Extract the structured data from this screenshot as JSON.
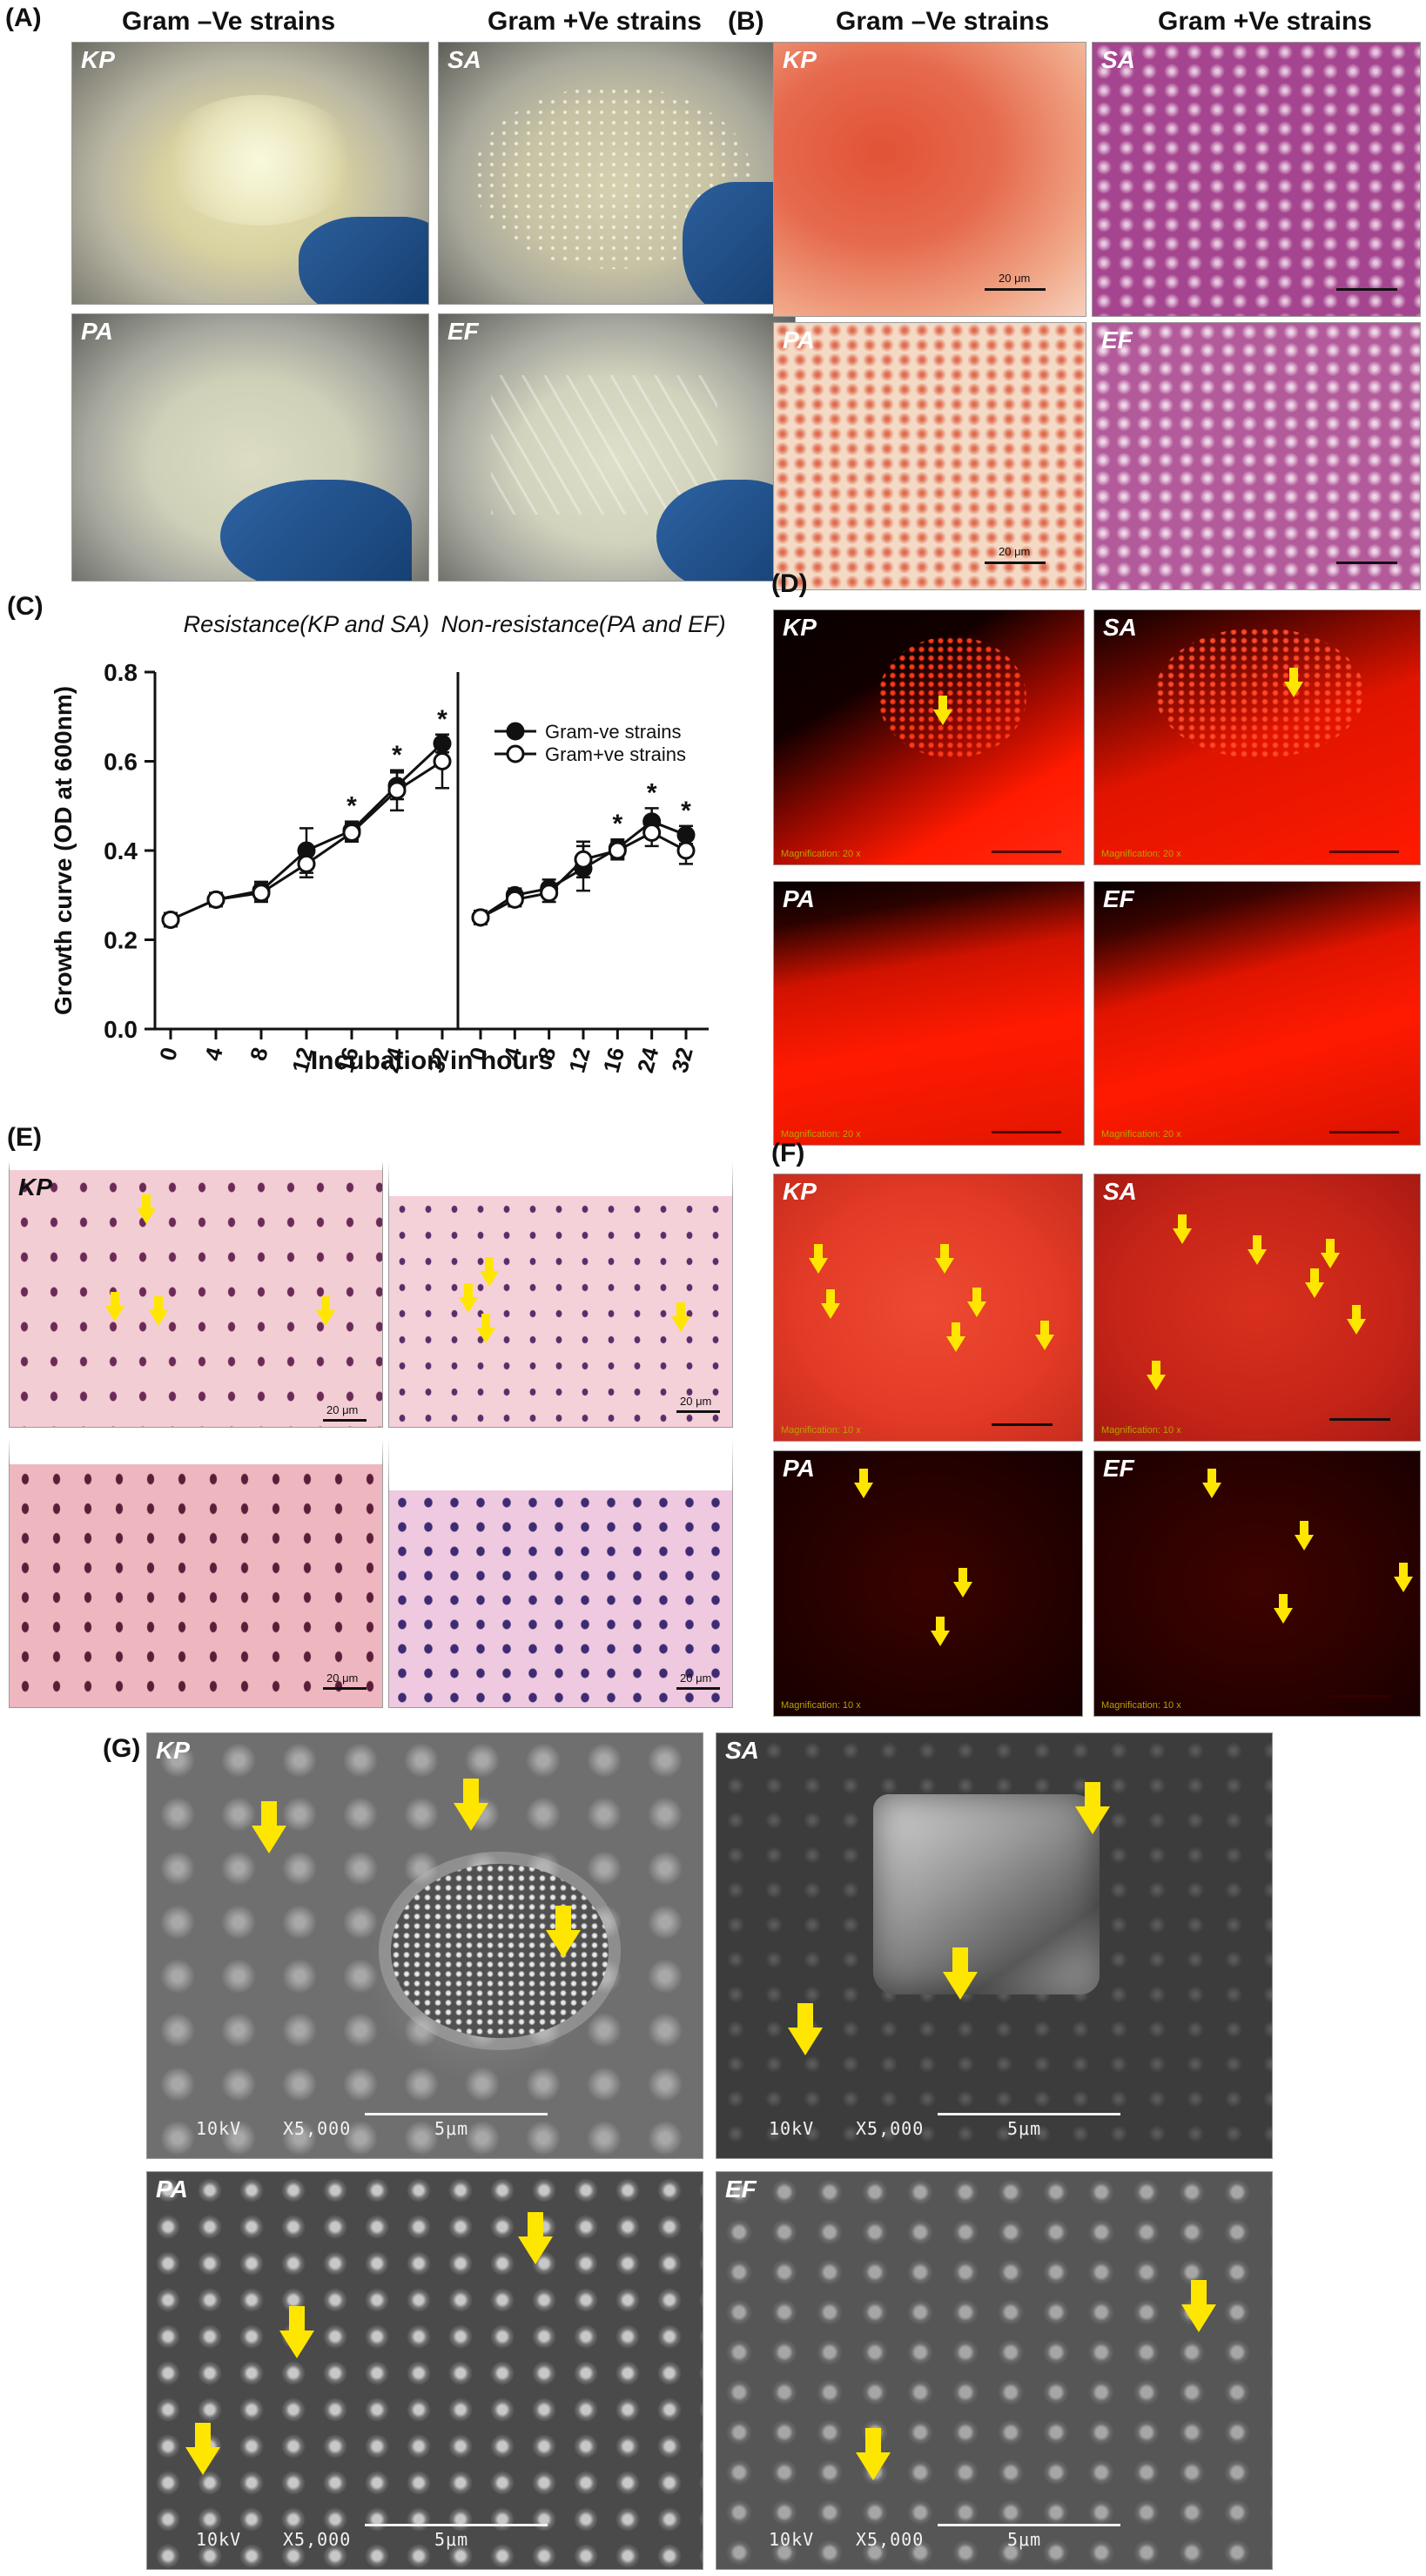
{
  "panels": {
    "A": {
      "label": "(A)",
      "header_left": "Gram –Ve strains",
      "header_right": "Gram +Ve strains",
      "tiles": [
        "KP",
        "SA",
        "PA",
        "EF"
      ]
    },
    "B": {
      "label": "(B)",
      "header_left": "Gram –Ve strains",
      "header_right": "Gram +Ve strains",
      "tiles": [
        "KP",
        "SA",
        "PA",
        "EF"
      ],
      "scale_text": "20 μm"
    },
    "C": {
      "label": "(C)",
      "title_left": "Resistance(KP and SA)",
      "title_right": "Non-resistance(PA and EF)",
      "ylabel": "Growth curve (OD at 600nm)",
      "xlabel": "Incubation in hours"
    },
    "D": {
      "label": "(D)",
      "tiles": [
        "KP",
        "SA",
        "PA",
        "EF"
      ],
      "mag_text": "Magnification: 20 x"
    },
    "E": {
      "label": "(E)",
      "tiles": [
        "KP",
        "SA",
        "PA",
        "EF"
      ],
      "scale_text": "20 μm"
    },
    "F": {
      "label": "(F)",
      "tiles": [
        "KP",
        "SA",
        "PA",
        "EF"
      ],
      "mag_text": "Magnification: 10 x"
    },
    "G": {
      "label": "(G)",
      "tiles": [
        "KP",
        "SA",
        "PA",
        "EF"
      ],
      "sem_kv": "10kV",
      "sem_mag": "X5,000",
      "sem_scale": "5μm"
    }
  },
  "chart_data": {
    "type": "line",
    "ylabel": "Growth curve (OD at 600nm)",
    "xlabel": "Incubation in hours",
    "ylim": [
      0.0,
      0.8
    ],
    "yticks": [
      "0.0",
      "0.2",
      "0.4",
      "0.6",
      "0.8"
    ],
    "categories": [
      "0",
      "4",
      "8",
      "12",
      "16",
      "24",
      "32"
    ],
    "legend": [
      "Gram-ve strains",
      "Gram+ve strains"
    ],
    "legend_position": "top-right of right subplot",
    "significance_marker": "*",
    "subplots": [
      {
        "title": "Resistance(KP and SA)",
        "series": [
          {
            "name": "Gram-ve strains",
            "marker": "filled",
            "values": [
              0.245,
              0.29,
              0.31,
              0.4,
              0.445,
              0.545,
              0.64
            ],
            "errors": [
              0.015,
              0.015,
              0.02,
              0.05,
              0.02,
              0.03,
              0.02
            ]
          },
          {
            "name": "Gram+ve strains",
            "marker": "open",
            "values": [
              0.245,
              0.29,
              0.305,
              0.37,
              0.44,
              0.535,
              0.6
            ],
            "errors": [
              0.015,
              0.015,
              0.02,
              0.03,
              0.02,
              0.045,
              0.06
            ]
          }
        ],
        "significant_at": [
          "16",
          "24",
          "32"
        ]
      },
      {
        "title": "Non-resistance(PA and EF)",
        "series": [
          {
            "name": "Gram-ve strains",
            "marker": "filled",
            "values": [
              0.25,
              0.3,
              0.315,
              0.36,
              0.405,
              0.465,
              0.435
            ],
            "errors": [
              0.015,
              0.015,
              0.02,
              0.05,
              0.02,
              0.03,
              0.02
            ]
          },
          {
            "name": "Gram+ve strains",
            "marker": "open",
            "values": [
              0.25,
              0.29,
              0.305,
              0.38,
              0.4,
              0.44,
              0.4
            ],
            "errors": [
              0.015,
              0.015,
              0.02,
              0.04,
              0.02,
              0.03,
              0.03
            ]
          }
        ],
        "significant_at": [
          "16",
          "24",
          "32"
        ]
      }
    ]
  }
}
